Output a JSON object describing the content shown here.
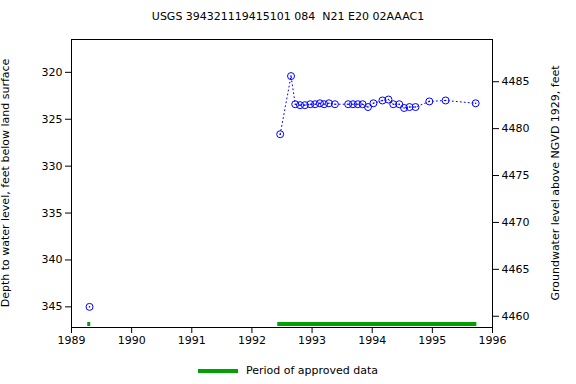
{
  "chart_data": {
    "type": "line",
    "title": "USGS 394321119415101 084  N21 E20 02AAAC1",
    "y_label": "Depth to water level, feet below land surface",
    "y2_label": "Groundwater level above NGVD 1929, feet",
    "x": [
      1989.3,
      null,
      1992.47,
      1992.65,
      1992.72,
      1992.8,
      1992.88,
      1992.97,
      1993.05,
      1993.13,
      1993.2,
      1993.28,
      1993.38,
      1993.6,
      1993.68,
      1993.76,
      1993.84,
      1993.93,
      1994.02,
      1994.17,
      1994.27,
      1994.35,
      1994.45,
      1994.53,
      1994.62,
      1994.72,
      1994.95,
      1995.22,
      1995.72
    ],
    "series": [
      {
        "name": "Depth to water level",
        "color": "#0000ff",
        "marker": "circle",
        "line_style": "dotted",
        "values": [
          345.0,
          null,
          326.6,
          320.4,
          323.4,
          323.5,
          323.5,
          323.4,
          323.4,
          323.3,
          323.4,
          323.3,
          323.4,
          323.4,
          323.4,
          323.4,
          323.4,
          323.7,
          323.3,
          323.0,
          322.9,
          323.4,
          323.4,
          323.8,
          323.7,
          323.7,
          323.1,
          323.0,
          323.3
        ]
      }
    ],
    "approved_periods": {
      "name": "Period of approved data",
      "color": "#00a000",
      "ranges": [
        [
          1989.27,
          1989.32
        ],
        [
          1992.43,
          1995.74
        ]
      ]
    },
    "xlim": [
      1989,
      1996
    ],
    "xticks": [
      1989,
      1990,
      1991,
      1992,
      1993,
      1994,
      1995,
      1996
    ],
    "ylim": [
      316.5,
      347.2
    ],
    "yticks": [
      320,
      325,
      330,
      335,
      340,
      345
    ],
    "y2lim": [
      4458.8,
      4489.5
    ],
    "y2ticks": [
      4460,
      4465,
      4470,
      4475,
      4480,
      4485
    ],
    "grid": false,
    "legend": "bottom"
  }
}
